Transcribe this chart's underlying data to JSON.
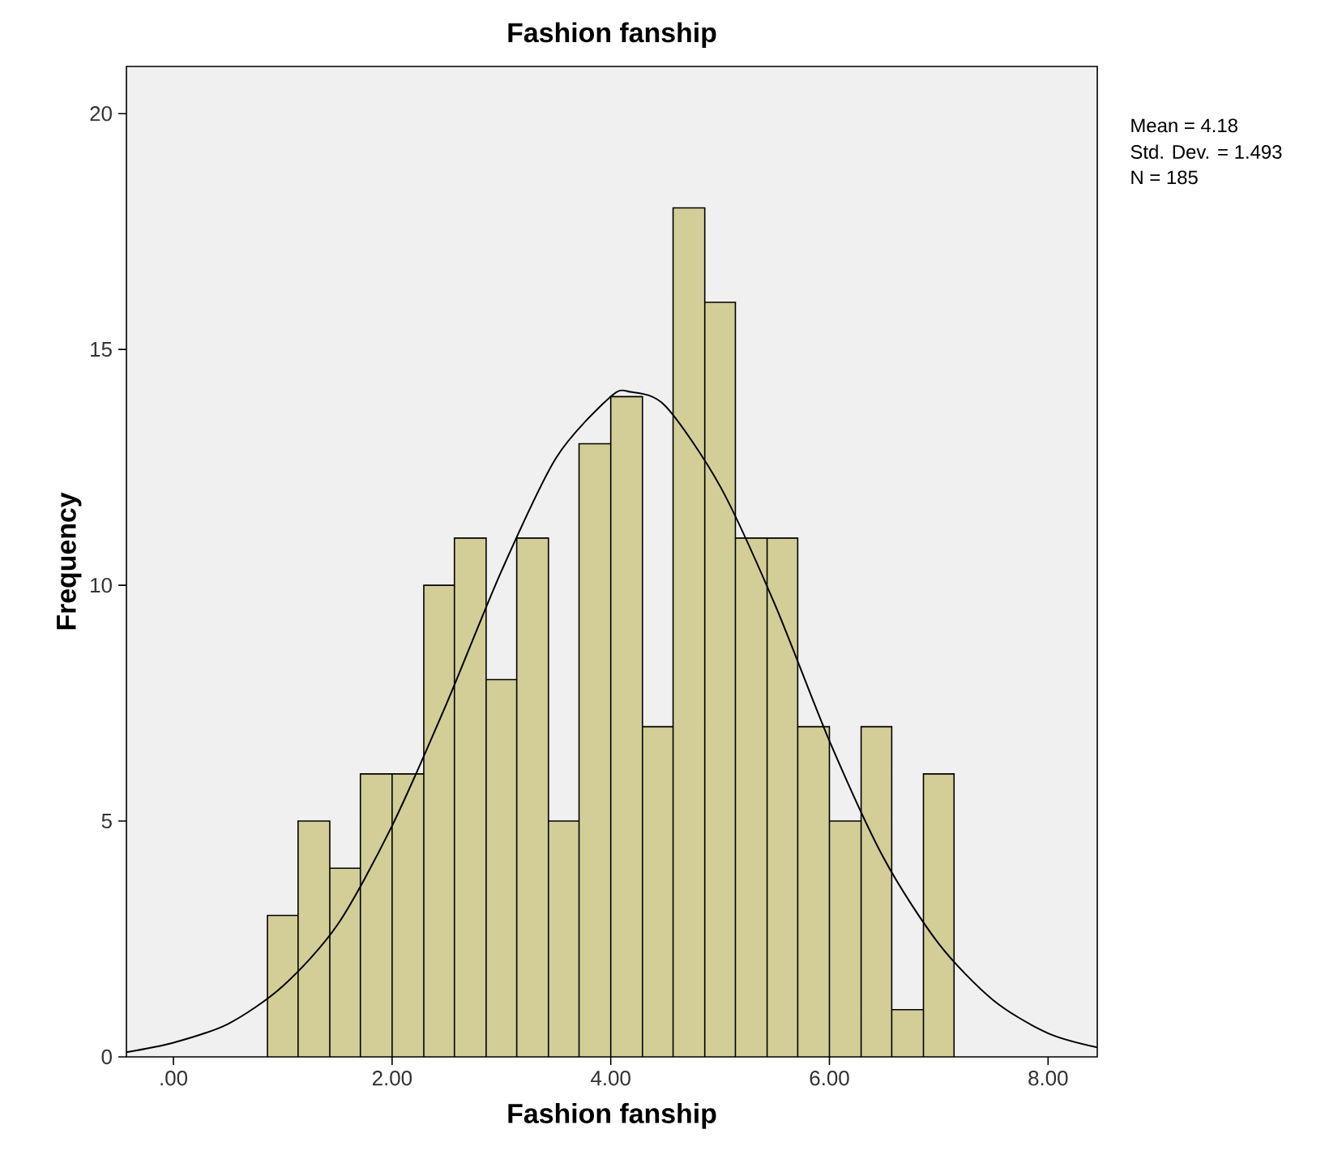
{
  "chart_data": {
    "type": "histogram",
    "title": "Fashion fanship",
    "xlabel": "Fashion fanship",
    "ylabel": "Frequency",
    "annotations": [
      "Mean = 4.18",
      "Std. Dev. = 1.493",
      "N = 185"
    ],
    "series": [
      {
        "color": "#d3ce97",
        "bins": [
          0.86,
          1.14,
          1.43,
          1.71,
          2.0,
          2.29,
          2.57,
          2.86,
          3.14,
          3.43,
          3.71,
          4.0,
          4.29,
          4.57,
          4.86,
          5.14,
          5.43,
          5.71,
          6.0,
          6.29,
          6.57,
          6.86,
          7.14
        ],
        "values": [
          3,
          5,
          4,
          6,
          6,
          10,
          11,
          8,
          11,
          5,
          13,
          14,
          7,
          18,
          16,
          11,
          11,
          7,
          5,
          7,
          1,
          6
        ]
      },
      {
        "type": "line",
        "color": "#000000",
        "x": [
          -0.43,
          0,
          0.5,
          1,
          1.5,
          2,
          2.5,
          3,
          3.5,
          4,
          4.18,
          4.5,
          5,
          5.5,
          6,
          6.5,
          7,
          7.5,
          8,
          8.45
        ],
        "values": [
          0.1,
          0.3,
          0.7,
          1.5,
          2.8,
          4.9,
          7.5,
          10.3,
          12.7,
          14.0,
          14.1,
          13.8,
          12.1,
          9.6,
          6.7,
          4.2,
          2.4,
          1.2,
          0.5,
          0.2
        ]
      }
    ],
    "xlim": [
      -0.43,
      8.45
    ],
    "ylim": [
      0,
      21
    ],
    "xticks": [
      {
        "value": 0,
        "label": ".00"
      },
      {
        "value": 2,
        "label": "2.00"
      },
      {
        "value": 4,
        "label": "4.00"
      },
      {
        "value": 6,
        "label": "6.00"
      },
      {
        "value": 8,
        "label": "8.00"
      }
    ],
    "yticks": [
      0,
      5,
      10,
      15,
      20
    ],
    "grid": false
  }
}
